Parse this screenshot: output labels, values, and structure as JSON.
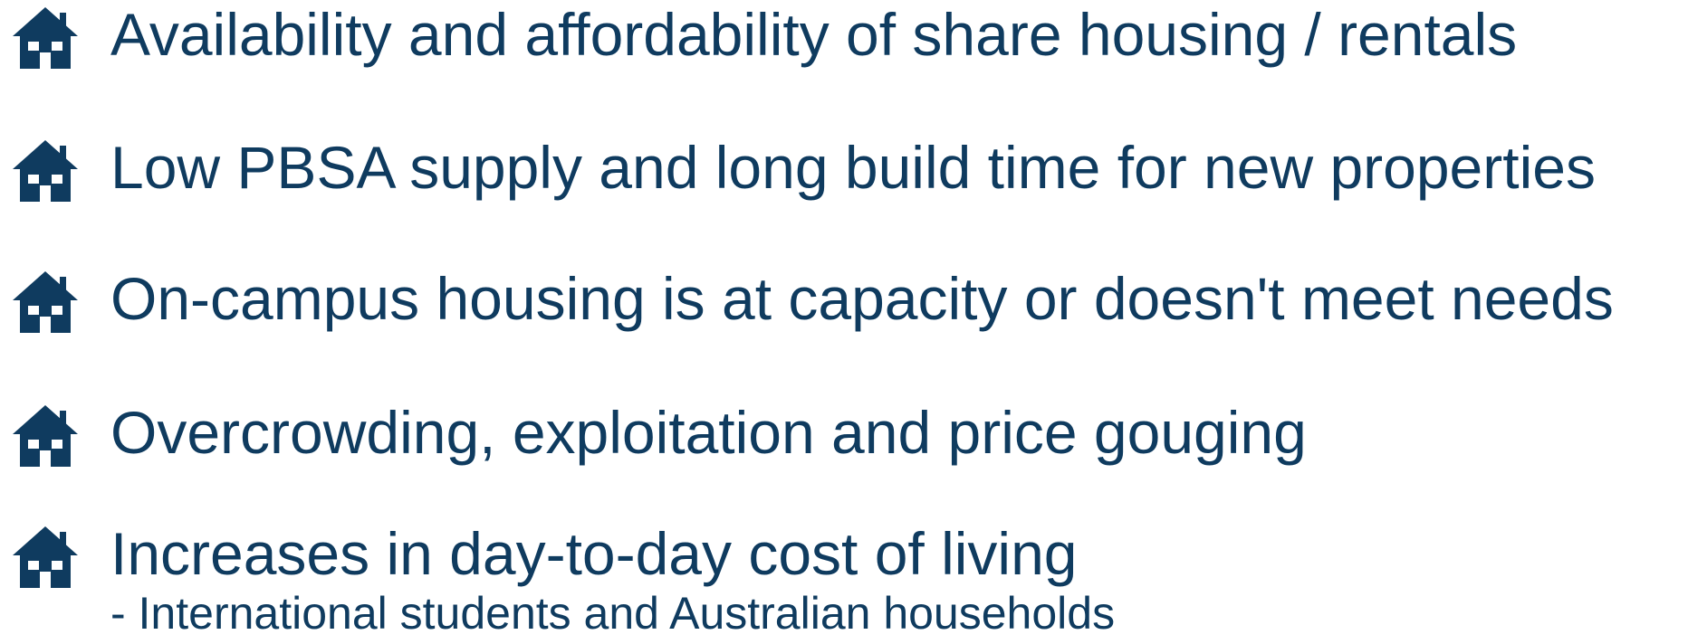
{
  "items": [
    {
      "text": "Availability and affordability of share housing / rentals"
    },
    {
      "text": "Low PBSA supply and long build time for new properties"
    },
    {
      "text": "On-campus housing is at capacity or doesn't meet needs"
    },
    {
      "text": "Overcrowding, exploitation and price gouging"
    },
    {
      "text": "Increases in day-to-day cost of living",
      "subtext": "- International students and Australian households"
    }
  ]
}
